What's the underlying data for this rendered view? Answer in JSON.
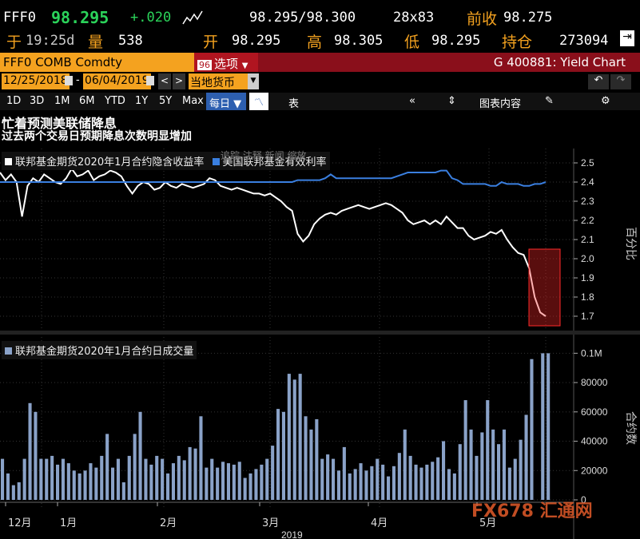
{
  "quote": {
    "ticker": "FFF0",
    "last": "98.295",
    "change": "+.020",
    "bid_ask": "98.295/98.300",
    "size": "28x83",
    "prev_close_label": "前收",
    "prev_close": "98.275",
    "time_label": "于",
    "time": "19:25d",
    "volume_label": "量",
    "volume": "538",
    "open_label": "开",
    "open": "98.295",
    "high_label": "高",
    "high": "98.305",
    "low_label": "低",
    "low": "98.295",
    "oi_label": "持仓",
    "oi": "273094"
  },
  "security_bar": {
    "security": "FFF0 COMB Comdty",
    "options_number": "96",
    "options_label": "选项",
    "function": "G 400881: Yield Chart"
  },
  "date_bar": {
    "start": "12/25/2018",
    "end": "06/04/2019",
    "currency": "当地货币"
  },
  "toolbar": {
    "ranges": [
      "1D",
      "3D",
      "1M",
      "6M",
      "YTD",
      "1Y",
      "5Y",
      "Max"
    ],
    "periodicity": "每日",
    "table_label": "表",
    "chart_content": "图表内容"
  },
  "headline": {
    "title": "忙着预测美联储降息",
    "subtitle": "过去两个交易日预期降息次数明显增加"
  },
  "top_legend": {
    "s1": "联邦基金期货2020年1月合约隐含收益率",
    "s2": "美国联邦基金有效利率",
    "tools": "追踪  注释  新闻  缩放"
  },
  "bottom_legend": "联邦基金期货2020年1月合约日成交量",
  "watermark": "FX678 汇通网",
  "colors": {
    "accent": "#f4a21f",
    "implied": "#ffffff",
    "effective": "#3a7fe0",
    "volume": "#8aa2c8",
    "highlight": "#ff2a2a",
    "up": "#2bd35a"
  },
  "chart_data": [
    {
      "type": "line",
      "ylabel": "百分比",
      "ylim": [
        1.65,
        2.55
      ],
      "yticks": [
        "2.5",
        "2.4",
        "2.3",
        "2.2",
        "2.1",
        "2.0",
        "1.9",
        "1.8",
        "1.7"
      ],
      "series": [
        {
          "name": "联邦基金期货2020年1月合约隐含收益率",
          "values": [
            2.45,
            2.41,
            2.44,
            2.4,
            2.22,
            2.38,
            2.42,
            2.4,
            2.44,
            2.42,
            2.4,
            2.39,
            2.42,
            2.47,
            2.43,
            2.44,
            2.46,
            2.41,
            2.43,
            2.44,
            2.46,
            2.45,
            2.43,
            2.38,
            2.34,
            2.38,
            2.4,
            2.39,
            2.36,
            2.37,
            2.4,
            2.38,
            2.37,
            2.39,
            2.38,
            2.37,
            2.38,
            2.39,
            2.42,
            2.41,
            2.38,
            2.37,
            2.36,
            2.37,
            2.36,
            2.35,
            2.34,
            2.34,
            2.33,
            2.34,
            2.32,
            2.3,
            2.27,
            2.25,
            2.13,
            2.09,
            2.12,
            2.18,
            2.21,
            2.23,
            2.24,
            2.23,
            2.25,
            2.26,
            2.27,
            2.28,
            2.27,
            2.26,
            2.27,
            2.28,
            2.29,
            2.28,
            2.26,
            2.24,
            2.2,
            2.18,
            2.19,
            2.2,
            2.18,
            2.2,
            2.18,
            2.22,
            2.19,
            2.16,
            2.16,
            2.12,
            2.1,
            2.11,
            2.12,
            2.14,
            2.13,
            2.15,
            2.1,
            2.06,
            2.03,
            2.02,
            1.95,
            1.8,
            1.72,
            1.7
          ]
        },
        {
          "name": "美国联邦基金有效利率",
          "values": [
            2.4,
            2.4,
            2.4,
            2.4,
            2.4,
            2.4,
            2.4,
            2.4,
            2.4,
            2.4,
            2.4,
            2.4,
            2.4,
            2.4,
            2.4,
            2.4,
            2.4,
            2.4,
            2.4,
            2.4,
            2.4,
            2.4,
            2.4,
            2.4,
            2.4,
            2.4,
            2.4,
            2.4,
            2.4,
            2.4,
            2.4,
            2.4,
            2.4,
            2.4,
            2.4,
            2.4,
            2.4,
            2.4,
            2.4,
            2.4,
            2.4,
            2.4,
            2.4,
            2.4,
            2.4,
            2.4,
            2.4,
            2.4,
            2.4,
            2.4,
            2.4,
            2.4,
            2.4,
            2.4,
            2.41,
            2.41,
            2.41,
            2.41,
            2.41,
            2.42,
            2.44,
            2.42,
            2.42,
            2.42,
            2.42,
            2.42,
            2.42,
            2.42,
            2.42,
            2.42,
            2.42,
            2.42,
            2.43,
            2.44,
            2.45,
            2.45,
            2.45,
            2.45,
            2.45,
            2.45,
            2.46,
            2.46,
            2.42,
            2.41,
            2.39,
            2.39,
            2.39,
            2.39,
            2.39,
            2.38,
            2.38,
            2.4,
            2.39,
            2.39,
            2.39,
            2.38,
            2.38,
            2.39,
            2.39,
            2.4
          ]
        }
      ]
    },
    {
      "type": "bar",
      "ylabel": "合约数",
      "ylim": [
        0,
        110000
      ],
      "yticks": [
        "0.1M",
        "80000",
        "60000",
        "40000",
        "20000",
        "0"
      ],
      "x_labels": [
        "12月",
        "1月",
        "2月",
        "3月",
        "4月",
        "5月"
      ],
      "x_year": "2019",
      "series": [
        {
          "name": "联邦基金期货2020年1月合约日成交量",
          "values": [
            28000,
            18000,
            10000,
            12000,
            28000,
            66000,
            60000,
            28000,
            28000,
            30000,
            24000,
            28000,
            25000,
            20000,
            18000,
            20000,
            25000,
            22000,
            30000,
            45000,
            22000,
            28000,
            12000,
            30000,
            45000,
            60000,
            28000,
            24000,
            30000,
            28000,
            18000,
            25000,
            30000,
            27000,
            36000,
            35000,
            57000,
            22000,
            28000,
            22000,
            26000,
            25000,
            24000,
            26000,
            15000,
            18000,
            21000,
            24000,
            28000,
            37000,
            62000,
            60000,
            86000,
            82000,
            86000,
            57000,
            48000,
            55000,
            28000,
            31000,
            28000,
            20000,
            36000,
            18000,
            21000,
            25000,
            20000,
            23000,
            28000,
            24000,
            16000,
            23000,
            32000,
            48000,
            30000,
            24000,
            22000,
            24000,
            26000,
            29000,
            40000,
            21000,
            18000,
            38000,
            68000,
            48000,
            30000,
            46000,
            68000,
            48000,
            38000,
            48000,
            22000,
            28000,
            41000,
            58000,
            96000,
            0,
            100000,
            100000
          ]
        }
      ]
    }
  ]
}
